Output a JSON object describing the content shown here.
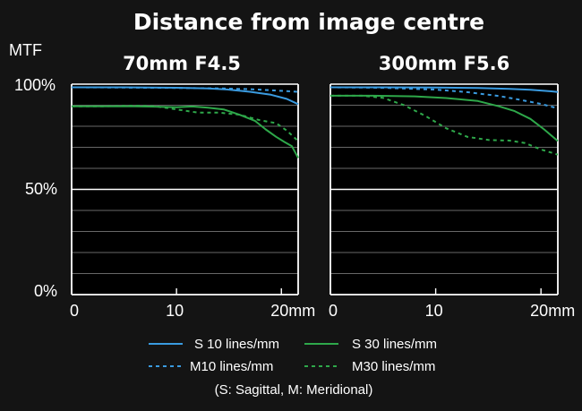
{
  "title": "Distance from image centre",
  "ylabel": "MTF",
  "y_ticks": [
    "100%",
    "50%",
    "0%"
  ],
  "colors": {
    "background": "#141414",
    "plot_bg": "#000000",
    "grid": "#8a8a8a",
    "s10": "#3a9be0",
    "m10": "#3a9be0",
    "s30": "#2ea84a",
    "m30": "#2ea84a"
  },
  "legend": [
    {
      "key": "s10",
      "label": "S 10 lines/mm",
      "dashed": false
    },
    {
      "key": "s30",
      "label": "S 30 lines/mm",
      "dashed": false
    },
    {
      "key": "m10",
      "label": "M10 lines/mm",
      "dashed": true
    },
    {
      "key": "m30",
      "label": "M30 lines/mm",
      "dashed": true
    }
  ],
  "note": "(S: Sagittal, M: Meridional)",
  "chart_data": [
    {
      "type": "line",
      "title": "70mm F4.5",
      "xlim": [
        0,
        21.6
      ],
      "ylim": [
        0,
        100
      ],
      "x_tick_values": [
        0,
        10,
        20
      ],
      "x_ticks": [
        "0",
        "10",
        "20mm"
      ],
      "grid": true,
      "series": [
        {
          "key": "s10",
          "name": "S 10 lines/mm",
          "x": [
            0,
            5,
            10,
            13,
            15,
            17,
            19,
            20.5,
            21.6
          ],
          "y": [
            98.5,
            98.5,
            98.3,
            98,
            97.4,
            96.4,
            95,
            93,
            90.5
          ]
        },
        {
          "key": "m10",
          "name": "M10 lines/mm",
          "x": [
            0,
            5,
            10,
            14,
            17,
            19,
            21.6
          ],
          "y": [
            98.5,
            98.4,
            98.2,
            98,
            97.6,
            97.1,
            96.4
          ]
        },
        {
          "key": "s30",
          "name": "S 30 lines/mm",
          "x": [
            0,
            3,
            6,
            8,
            10,
            11.5,
            13,
            14.5,
            16,
            17.5,
            18.5,
            19.5,
            20.3,
            21,
            21.6
          ],
          "y": [
            89.5,
            89.5,
            89.5,
            89.3,
            89,
            89.4,
            88.8,
            88,
            85.5,
            82.5,
            78.5,
            75,
            72.5,
            70.5,
            65
          ]
        },
        {
          "key": "m30",
          "name": "M30 lines/mm",
          "x": [
            0,
            3,
            6,
            8,
            10,
            12,
            14,
            16,
            18,
            19.5,
            20.5,
            21.6
          ],
          "y": [
            89.5,
            89.5,
            89.8,
            89.5,
            88,
            86.5,
            86.5,
            85.5,
            82.8,
            81.5,
            78,
            73
          ]
        }
      ]
    },
    {
      "type": "line",
      "title": "300mm F5.6",
      "xlim": [
        0,
        21.6
      ],
      "ylim": [
        0,
        100
      ],
      "x_tick_values": [
        0,
        10,
        20
      ],
      "x_ticks": [
        "0",
        "10",
        "20mm"
      ],
      "grid": true,
      "series": [
        {
          "key": "s10",
          "name": "S 10 lines/mm",
          "x": [
            0,
            5,
            10,
            14,
            17,
            19,
            21,
            21.6
          ],
          "y": [
            98.5,
            98.5,
            98.4,
            98.2,
            97.8,
            97.3,
            96.6,
            96.3
          ]
        },
        {
          "key": "m10",
          "name": "M10 lines/mm",
          "x": [
            0,
            5,
            10,
            13,
            16,
            18,
            20,
            21.6
          ],
          "y": [
            98.5,
            98.3,
            97.4,
            96.2,
            94.4,
            92.6,
            90.6,
            88.5
          ]
        },
        {
          "key": "s30",
          "name": "S 30 lines/mm",
          "x": [
            0,
            4,
            8,
            11,
            14,
            16,
            17.5,
            19,
            20.3,
            21.6
          ],
          "y": [
            94.5,
            94.5,
            94.2,
            93.4,
            92,
            89.5,
            87.2,
            83.5,
            78.5,
            73
          ]
        },
        {
          "key": "m30",
          "name": "M30 lines/mm",
          "x": [
            0,
            3,
            5,
            7,
            9,
            11,
            13,
            15,
            17,
            18.5,
            20,
            21.6
          ],
          "y": [
            94.5,
            94.5,
            93.5,
            90,
            85,
            79,
            75,
            73.5,
            73.2,
            72,
            69,
            66.5
          ]
        }
      ]
    }
  ]
}
